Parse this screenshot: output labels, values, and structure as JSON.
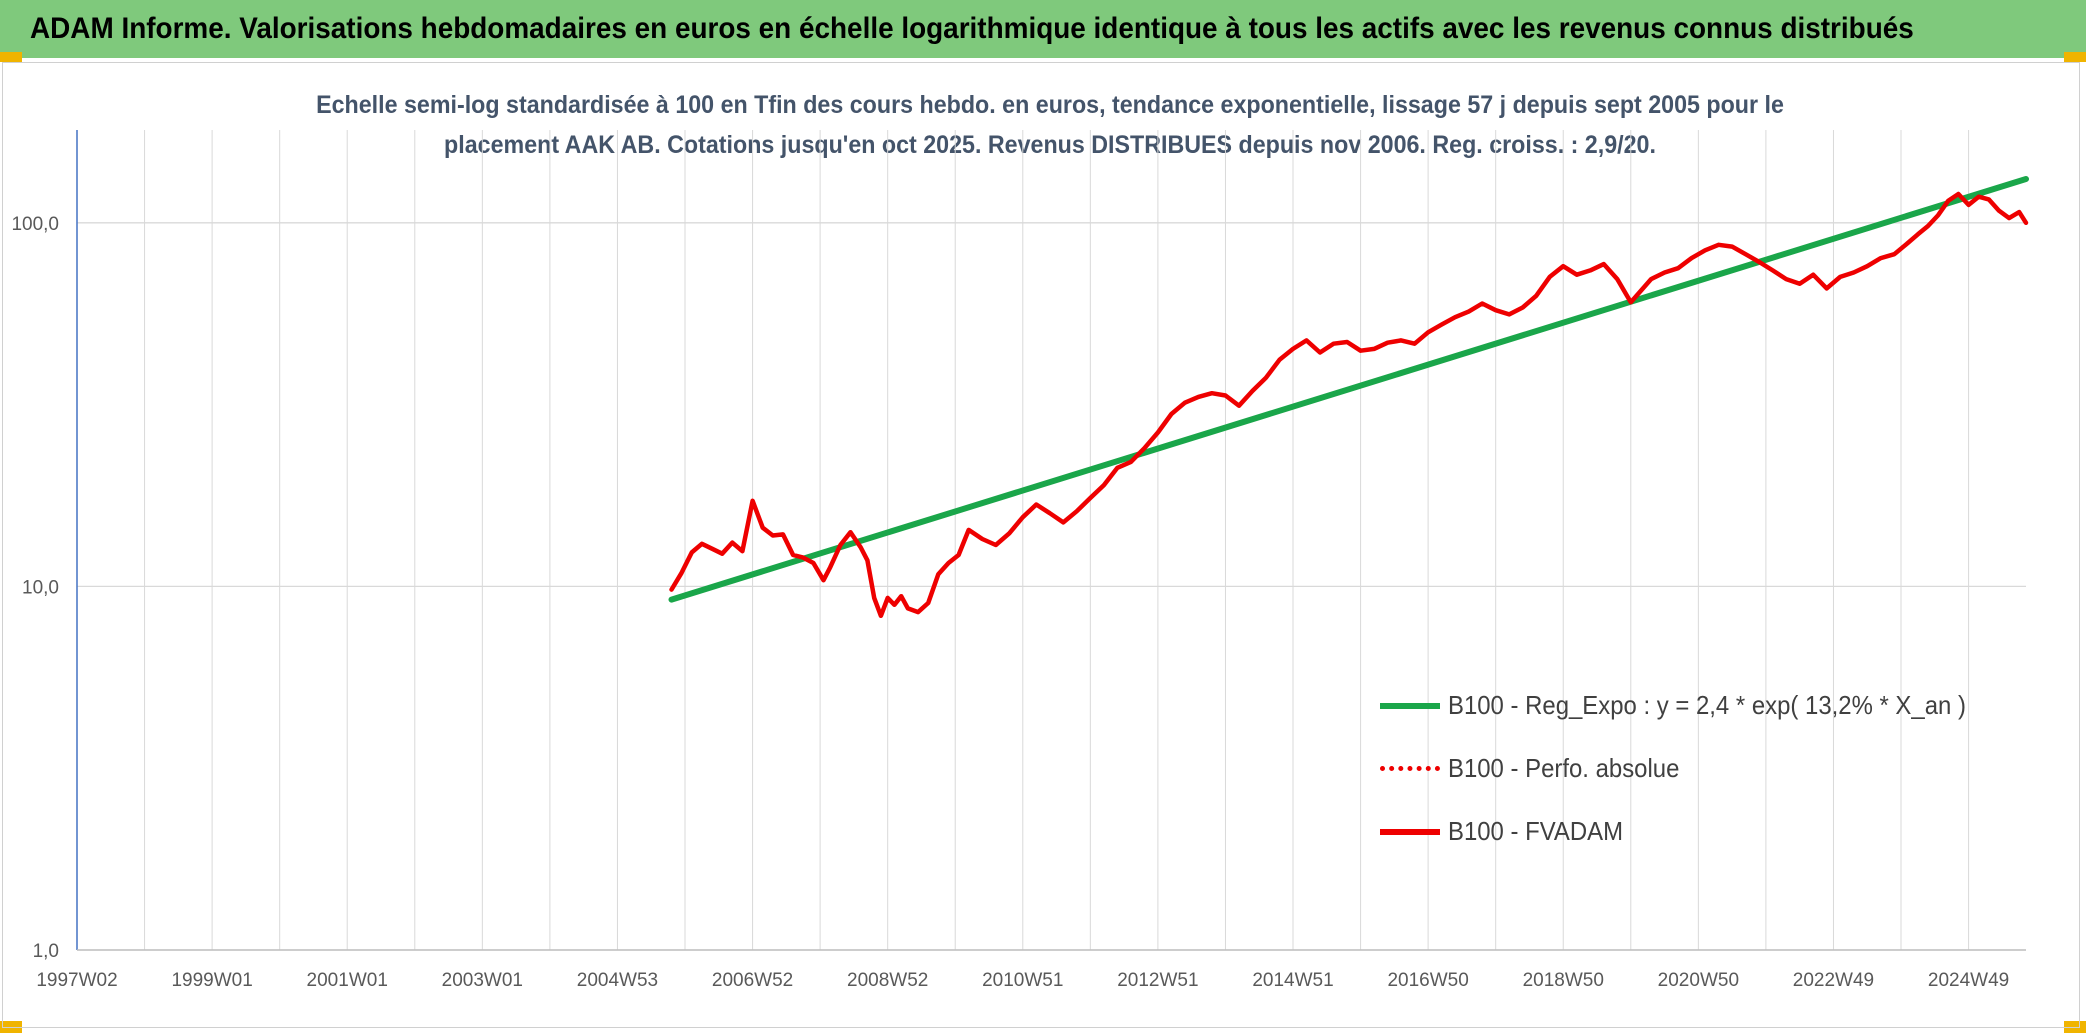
{
  "header": {
    "title": "ADAM Informe. Valorisations hebdomadaires en euros en échelle logarithmique identique à tous les actifs avec les revenus connus distribués"
  },
  "colors": {
    "header_bg": "#7fc97c",
    "corner_accent": "#f0b400",
    "trend_green": "#1aa64a",
    "series_red": "#ee0000",
    "subtitle_text": "#44546a",
    "grid": "#d9d9d9",
    "axis": "#4472c4"
  },
  "chart_data": {
    "type": "line",
    "title": "Echelle semi-log standardisée à 100 en Tfin des cours hebdo. en euros, tendance exponentielle, lissage 57 j depuis sept 2005 pour le placement AAK AB. Cotations jusqu'en oct 2025. Revenus DISTRIBUES depuis nov 2006. Reg. croiss. : 2,9/20.",
    "title_lines": [
      "Echelle semi-log standardisée à 100 en Tfin des cours hebdo. en euros, tendance exponentielle, lissage 57 j depuis sept 2005 pour le",
      "placement AAK AB. Cotations jusqu'en oct 2025. Revenus DISTRIBUES depuis nov 2006. Reg. croiss. : 2,9/20."
    ],
    "y_scale": "log",
    "ylim": [
      1,
      180
    ],
    "y_ticks": [
      1,
      10,
      100
    ],
    "y_tick_labels": [
      "1,0",
      "10,0",
      "100,0"
    ],
    "x_unit": "years",
    "xlim": [
      1997.0,
      2025.85
    ],
    "x_tick_positions": [
      1997.0,
      1999.0,
      2001.0,
      2003.0,
      2005.0,
      2007.0,
      2009.0,
      2011.0,
      2013.0,
      2015.0,
      2017.0,
      2019.0,
      2021.0,
      2023.0,
      2025.0
    ],
    "x_tick_labels": [
      "1997W02",
      "1999W01",
      "2001W01",
      "2003W01",
      "2004W53",
      "2006W52",
      "2008W52",
      "2010W51",
      "2012W51",
      "2014W51",
      "2016W50",
      "2018W50",
      "2020W50",
      "2022W49",
      "2024W49"
    ],
    "grid": true,
    "legend_position": "bottom-right",
    "series": [
      {
        "name": "B100 - Reg_Expo : y = 2,4 * exp( 13,2% *  X_an )",
        "style": "solid-thick",
        "color": "#1aa64a",
        "x": [
          2005.8,
          2025.85
        ],
        "y": [
          9.2,
          132
        ]
      },
      {
        "name": "B100 - Perfo. absolue",
        "style": "dotted",
        "color": "#ee0000",
        "x": [],
        "y": []
      },
      {
        "name": "B100 - FVADAM",
        "style": "solid-thick",
        "color": "#ee0000",
        "x": [
          2005.8,
          2005.95,
          2006.1,
          2006.25,
          2006.4,
          2006.55,
          2006.7,
          2006.85,
          2007.0,
          2007.15,
          2007.3,
          2007.45,
          2007.6,
          2007.75,
          2007.9,
          2008.05,
          2008.15,
          2008.3,
          2008.45,
          2008.6,
          2008.7,
          2008.8,
          2008.9,
          2009.0,
          2009.1,
          2009.2,
          2009.3,
          2009.45,
          2009.6,
          2009.75,
          2009.9,
          2010.05,
          2010.2,
          2010.4,
          2010.6,
          2010.8,
          2011.0,
          2011.2,
          2011.4,
          2011.6,
          2011.8,
          2012.0,
          2012.2,
          2012.4,
          2012.6,
          2012.8,
          2013.0,
          2013.2,
          2013.4,
          2013.6,
          2013.8,
          2014.0,
          2014.2,
          2014.4,
          2014.6,
          2014.8,
          2015.0,
          2015.2,
          2015.4,
          2015.6,
          2015.8,
          2016.0,
          2016.2,
          2016.4,
          2016.6,
          2016.8,
          2017.0,
          2017.2,
          2017.4,
          2017.6,
          2017.8,
          2018.0,
          2018.2,
          2018.4,
          2018.6,
          2018.8,
          2019.0,
          2019.2,
          2019.4,
          2019.6,
          2019.8,
          2020.0,
          2020.15,
          2020.3,
          2020.5,
          2020.7,
          2020.9,
          2021.1,
          2021.3,
          2021.5,
          2021.7,
          2021.9,
          2022.1,
          2022.3,
          2022.5,
          2022.7,
          2022.9,
          2023.1,
          2023.3,
          2023.5,
          2023.7,
          2023.9,
          2024.1,
          2024.25,
          2024.4,
          2024.55,
          2024.7,
          2024.85,
          2025.0,
          2025.15,
          2025.3,
          2025.45,
          2025.6,
          2025.75,
          2025.85
        ],
        "y": [
          9.8,
          10.9,
          12.4,
          13.1,
          12.7,
          12.3,
          13.2,
          12.5,
          17.2,
          14.5,
          13.8,
          13.9,
          12.2,
          12.0,
          11.6,
          10.4,
          11.3,
          13.0,
          14.1,
          12.8,
          11.8,
          9.3,
          8.3,
          9.3,
          8.9,
          9.4,
          8.7,
          8.5,
          9.0,
          10.8,
          11.6,
          12.2,
          14.3,
          13.5,
          13.0,
          14.0,
          15.5,
          16.8,
          15.9,
          15.0,
          16.1,
          17.5,
          19.0,
          21.2,
          22.0,
          24.0,
          26.5,
          29.8,
          32.0,
          33.2,
          34.0,
          33.5,
          31.4,
          34.5,
          37.5,
          42.0,
          45.0,
          47.5,
          44.0,
          46.5,
          47.0,
          44.5,
          45.0,
          46.8,
          47.5,
          46.5,
          50.0,
          52.5,
          55.0,
          57.0,
          60.0,
          57.5,
          56.0,
          58.5,
          63.0,
          71.0,
          76.0,
          72.0,
          74.0,
          77.0,
          70.0,
          60.5,
          65.0,
          70.0,
          73.0,
          75.0,
          80.0,
          84.0,
          87.0,
          86.0,
          82.0,
          78.0,
          74.0,
          70.0,
          68.0,
          72.0,
          66.0,
          71.0,
          73.0,
          76.0,
          80.0,
          82.0,
          88.0,
          93.0,
          98.0,
          105.0,
          115.0,
          120.0,
          112.0,
          118.0,
          116.0,
          108.0,
          103.0,
          107.0,
          100.0
        ]
      }
    ]
  }
}
